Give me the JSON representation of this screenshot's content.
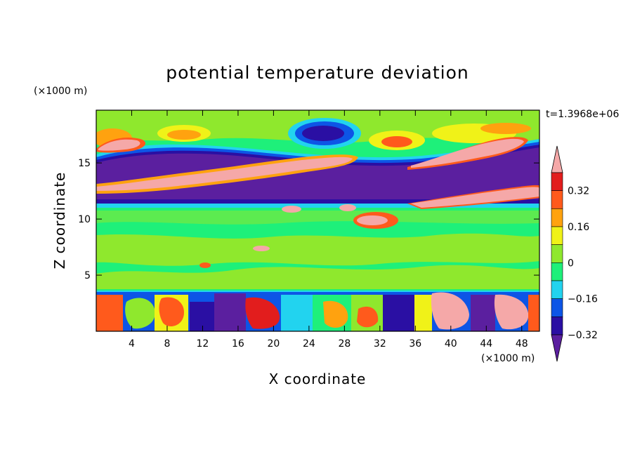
{
  "chart_data": {
    "type": "heatmap",
    "title": "potential temperature deviation",
    "xlabel": "X coordinate",
    "ylabel": "Z coordinate",
    "x_unit": "(×1000 m)",
    "y_unit": "(×1000 m)",
    "time_label": "t=1.3968e+06",
    "xlim": [
      0,
      50
    ],
    "ylim": [
      0,
      19.7
    ],
    "x_ticks": [
      4,
      8,
      12,
      16,
      20,
      24,
      28,
      32,
      36,
      40,
      44,
      48
    ],
    "y_ticks": [
      5,
      10,
      15
    ],
    "colorbar": {
      "levels": [
        -0.4,
        -0.32,
        -0.24,
        -0.16,
        -0.08,
        0,
        0.08,
        0.16,
        0.24,
        0.32,
        0.4
      ],
      "tick_labels": [
        "0.32",
        "0.16",
        "0",
        "−0.16",
        "−0.32"
      ],
      "colors": [
        "#5b1f9f",
        "#2a0fa3",
        "#0d55e6",
        "#22d3ef",
        "#1ef07a",
        "#8fe82d",
        "#f0f218",
        "#ffa20f",
        "#ff5a1c",
        "#e21d1d",
        "#f5a8a8"
      ],
      "extend": "both"
    },
    "bands": [
      {
        "z_range": [
          17.5,
          19.7
        ],
        "character": "weak positive/negative alternating near-zero field"
      },
      {
        "z_range": [
          14.0,
          17.5
        ],
        "character": "strong negative (< -0.4) with embedded strong positive plume"
      },
      {
        "z_range": [
          11.0,
          14.0
        ],
        "character": "strong positive layer tilting upward from left to right"
      },
      {
        "z_range": [
          3.5,
          11.0
        ],
        "character": "near zero (-0.08 to 0.08)"
      },
      {
        "z_range": [
          0,
          3.5
        ],
        "character": "turbulent boundary layer, mixed strong positive and negative"
      }
    ]
  }
}
